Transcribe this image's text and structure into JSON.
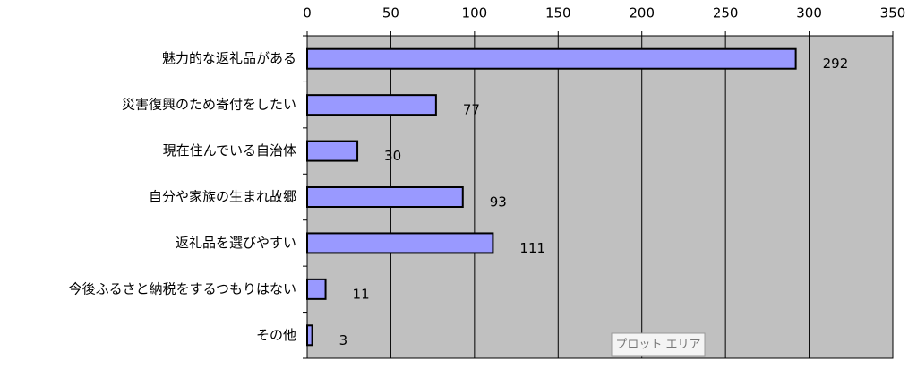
{
  "chart_data": {
    "type": "bar",
    "orientation": "horizontal",
    "categories": [
      "魅力的な返礼品がある",
      "災害復興のため寄付をしたい",
      "現在住んでいる自治体",
      "自分や家族の生まれ故郷",
      "返礼品を選びやすい",
      "今後ふるさと納税をするつもりはない",
      "その他"
    ],
    "values": [
      292,
      77,
      30,
      93,
      111,
      11,
      3
    ],
    "color": "#9999ff",
    "xlim": [
      0,
      350
    ],
    "xticks": [
      0,
      50,
      100,
      150,
      200,
      250,
      300,
      350
    ],
    "grid": true,
    "annotation": "プロット エリア"
  }
}
